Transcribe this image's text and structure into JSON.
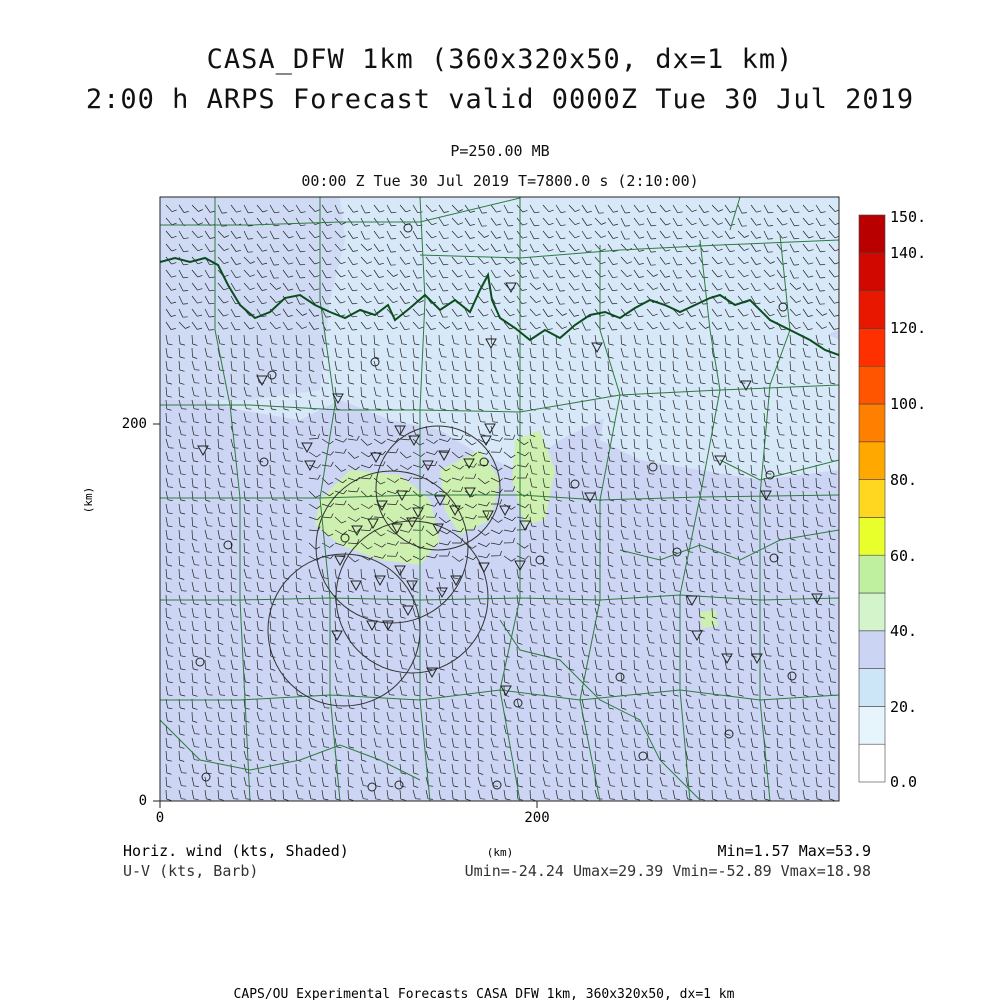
{
  "header": {
    "title_line1": "CASA_DFW 1km (360x320x50, dx=1 km)",
    "title_line2": "2:00 h ARPS Forecast valid 0000Z Tue 30 Jul 2019",
    "level": "P=250.00 MB",
    "valid_time": "00:00 Z Tue 30 Jul 2019    T=7800.0 s (2:10:00)"
  },
  "axes": {
    "x_unit": "(km)",
    "y_unit": "(km)",
    "x_ticks": [
      "0",
      "200"
    ],
    "y_ticks": [
      "0",
      "200"
    ],
    "x_range_km": [
      0,
      360
    ],
    "y_range_km": [
      0,
      320
    ]
  },
  "colorbar": {
    "labels": [
      "150.",
      "140.",
      "120.",
      "100.",
      "80.",
      "60.",
      "40.",
      "20.",
      "0.0"
    ],
    "colors": [
      "#ffffff",
      "#e6f4fc",
      "#cce6f8",
      "#ccd4f4",
      "#d4f4cc",
      "#bff0a0",
      "#e8ff2c",
      "#ffd620",
      "#ffa800",
      "#ff8000",
      "#ff5500",
      "#ff3000",
      "#e81800",
      "#d00800",
      "#b80000"
    ]
  },
  "footer": {
    "field_left": "Horiz. wind (kts, Shaded)",
    "vector_left": "U-V (kts, Barb)",
    "x_unit": "(km)",
    "minmax": "Min=1.57 Max=53.9",
    "uvstats": "Umin=-24.24 Umax=29.39 Vmin=-52.89 Vmax=18.98",
    "credit": "CAPS/OU Experimental Forecasts  CASA DFW 1km, 360x320x50, dx=1 km"
  },
  "map_colors": {
    "light_blue": "#d7e8f8",
    "lavender": "#ccd6f4",
    "green": "#cdf0b0",
    "yellow_green": "#bff09a",
    "county_line": "#2f7a3f",
    "state_line": "#0b4d1e"
  },
  "map_icons": {
    "station": "triangle-icon",
    "site": "circle-icon"
  }
}
